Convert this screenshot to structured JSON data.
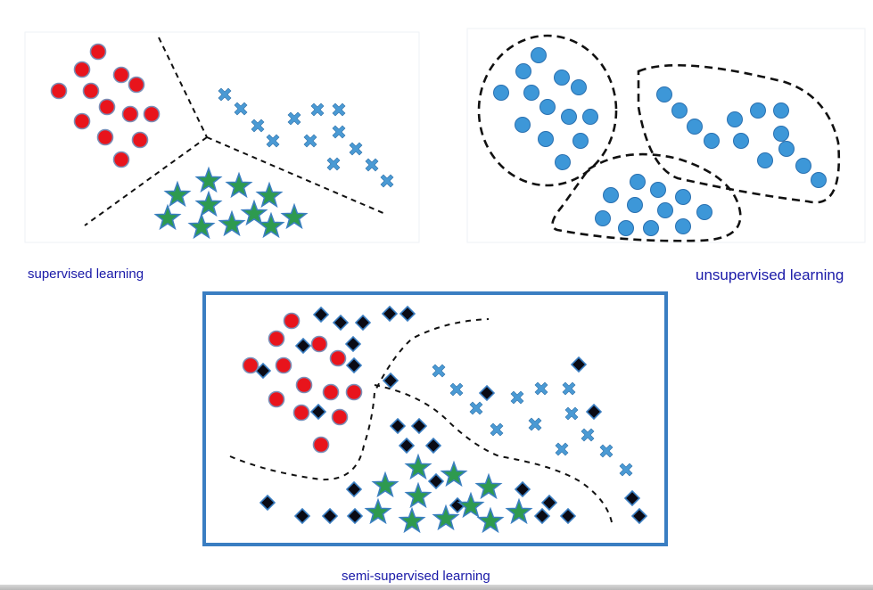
{
  "captions": {
    "supervised": "supervised learning",
    "unsupervised": "unsupervised learning",
    "semi_supervised": "semi-supervised learning"
  },
  "legend_marker_colors": {
    "circle_red": "#e8141c",
    "circle_blue": "#3d97d8",
    "cross_blue": "#4a9ad4",
    "star_green": "#2e9a4f",
    "diamond": "#0a0a14",
    "frame": "#3a7ec2",
    "boundary": "#111111"
  }
}
